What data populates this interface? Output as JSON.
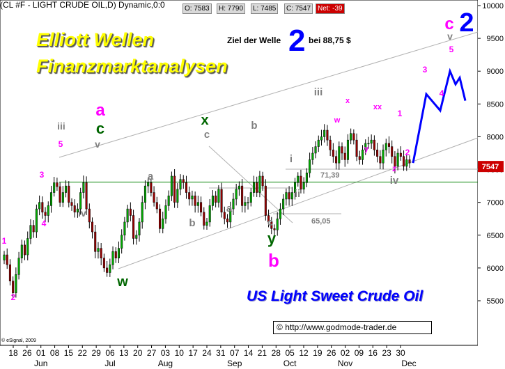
{
  "header": {
    "title": "(CL #F - LIGHT CRUDE OIL,D) Dynamic,0:0",
    "quotes": [
      {
        "label": "O: 7583"
      },
      {
        "label": "H: 7790"
      },
      {
        "label": "L: 7485"
      },
      {
        "label": "C: 7547"
      }
    ],
    "net_label": "Net: -39"
  },
  "overlay": {
    "headline_line1": "Elliott Wellen",
    "headline_line2": "Finanzmarktanalysen",
    "target_text_left": "Ziel der Welle",
    "target_big_number": "2",
    "target_text_right": "bei 88,75 $",
    "instrument": "US Light Sweet Crude Oil",
    "url": "http://www.godmode-trader.de",
    "copyright_symbol": "©",
    "esignal": "© eSignal, 2009",
    "level_1": "71,39",
    "level_2": "65,05",
    "current_price_label": "7547"
  },
  "colors": {
    "magenta": "#ff00ff",
    "green": "#006600",
    "gray": "#808080",
    "blue": "#0000ff",
    "price_tag_bg": "#cc0000",
    "bull_candle": "#00aa00",
    "bear_candle": "#990000",
    "support_line": "#008000"
  },
  "wave_labels": [
    {
      "text": "1",
      "color": "magenta",
      "size": 12
    },
    {
      "text": "2",
      "color": "magenta",
      "size": 12
    },
    {
      "text": "3",
      "color": "magenta",
      "size": 12
    },
    {
      "text": "4",
      "color": "magenta",
      "size": 12
    },
    {
      "text": "5",
      "color": "magenta",
      "size": 12
    },
    {
      "text": "iii",
      "color": "gray",
      "size": 14
    },
    {
      "text": "iv",
      "color": "gray",
      "size": 14
    },
    {
      "text": "v",
      "color": "gray",
      "size": 14
    },
    {
      "text": "a",
      "color": "magenta",
      "size": 24
    },
    {
      "text": "c",
      "color": "green",
      "size": 22
    },
    {
      "text": "w",
      "color": "green",
      "size": 20
    },
    {
      "text": "a",
      "color": "gray",
      "size": 15
    },
    {
      "text": "b",
      "color": "gray",
      "size": 15
    },
    {
      "text": "x",
      "color": "green",
      "size": 20
    },
    {
      "text": "c",
      "color": "gray",
      "size": 15
    },
    {
      "text": "b",
      "color": "gray",
      "size": 15
    },
    {
      "text": "a",
      "color": "gray",
      "size": 15
    },
    {
      "text": "c",
      "color": "gray",
      "size": 15
    },
    {
      "text": "y",
      "color": "green",
      "size": 22
    },
    {
      "text": "b",
      "color": "magenta",
      "size": 26
    },
    {
      "text": "i",
      "color": "gray",
      "size": 15
    },
    {
      "text": "ii",
      "color": "gray",
      "size": 15
    },
    {
      "text": "iii",
      "color": "gray",
      "size": 15
    },
    {
      "text": "w",
      "color": "magenta",
      "size": 11
    },
    {
      "text": "x",
      "color": "magenta",
      "size": 11
    },
    {
      "text": "y",
      "color": "magenta",
      "size": 11
    },
    {
      "text": "xx",
      "color": "magenta",
      "size": 11
    },
    {
      "text": "1",
      "color": "magenta",
      "size": 12
    },
    {
      "text": "z",
      "color": "magenta",
      "size": 12
    },
    {
      "text": "2",
      "color": "magenta",
      "size": 12
    },
    {
      "text": "iv",
      "color": "gray",
      "size": 15
    },
    {
      "text": "3",
      "color": "magenta",
      "size": 12
    },
    {
      "text": "4",
      "color": "magenta",
      "size": 12
    },
    {
      "text": "5",
      "color": "magenta",
      "size": 12
    },
    {
      "text": "v",
      "color": "gray",
      "size": 14
    },
    {
      "text": "c",
      "color": "magenta",
      "size": 24
    },
    {
      "text": "2",
      "color": "blue",
      "size": 38
    }
  ],
  "chart_data": {
    "type": "candlestick",
    "title": "(CL #F - LIGHT CRUDE OIL,D) Dynamic,0:0",
    "y_axis": {
      "position": "right",
      "ticks": [
        "10000",
        "9500",
        "9000",
        "8500",
        "8000",
        "7500",
        "7000",
        "6500",
        "6000",
        "5500"
      ],
      "range": [
        5000,
        10000
      ]
    },
    "x_axis": {
      "day_ticks": [
        "18",
        "26",
        "01",
        "08",
        "15",
        "22",
        "29",
        "06",
        "13",
        "20",
        "27",
        "03",
        "10",
        "17",
        "24",
        "31",
        "07",
        "14",
        "21",
        "28",
        "05",
        "12",
        "19",
        "26",
        "02",
        "09",
        "16",
        "23",
        "30"
      ],
      "months": [
        "Jun",
        "Jul",
        "Aug",
        "Sep",
        "Oct",
        "Nov",
        "Dec"
      ]
    },
    "last": {
      "open": 7583,
      "high": 7790,
      "low": 7485,
      "close": 7547,
      "net": -39
    },
    "support_line": 7310,
    "levels": [
      {
        "label": "71,39",
        "value": 7139
      },
      {
        "label": "65,05",
        "value": 6505
      }
    ],
    "closes": [
      6200,
      6050,
      5800,
      5620,
      5900,
      6150,
      6350,
      6200,
      6450,
      6650,
      6550,
      6900,
      7000,
      6850,
      6800,
      6950,
      7150,
      7300,
      7240,
      7000,
      7150,
      7250,
      7000,
      6950,
      6850,
      6900,
      7150,
      7300,
      6900,
      6700,
      6550,
      6250,
      6300,
      6150,
      6000,
      5930,
      6050,
      6250,
      6150,
      6300,
      6500,
      6700,
      6900,
      6800,
      6450,
      6500,
      6700,
      7000,
      7250,
      7300,
      7150,
      7000,
      6900,
      6600,
      6750,
      6950,
      7100,
      7400,
      7000,
      7200,
      7350,
      7300,
      7150,
      7050,
      7100,
      6950,
      7000,
      6850,
      6650,
      6700,
      6950,
      7100,
      7000,
      7200,
      6850,
      6750,
      6700,
      6900,
      7050,
      7200,
      7250,
      6950,
      7000,
      7000,
      7150,
      7300,
      7150,
      7400,
      7250,
      6800,
      6700,
      6600,
      6580,
      6750,
      6900,
      7050,
      7150,
      7050,
      7150,
      7300,
      7400,
      7200,
      7300,
      7450,
      7650,
      7750,
      7850,
      7950,
      8000,
      8100,
      7950,
      7800,
      7700,
      7600,
      7850,
      7750,
      7650,
      7950,
      8050,
      7950,
      7700,
      7650,
      7800,
      7900,
      7900,
      7950,
      7800,
      7700,
      7600,
      7800,
      7900,
      7850,
      7700,
      7550,
      7750,
      7700,
      7550,
      7650,
      7600
    ],
    "forecast_path": [
      {
        "label": "start",
        "value": 7600
      },
      {
        "label": "3",
        "value": 8650
      },
      {
        "label": "4",
        "value": 8400
      },
      {
        "label": "5",
        "value": 9000
      },
      {
        "label": "",
        "value": 8800
      },
      {
        "label": "",
        "value": 8900
      },
      {
        "label": "",
        "value": 8550
      }
    ],
    "channel_lines": 4,
    "grid": false,
    "legend": "none"
  }
}
